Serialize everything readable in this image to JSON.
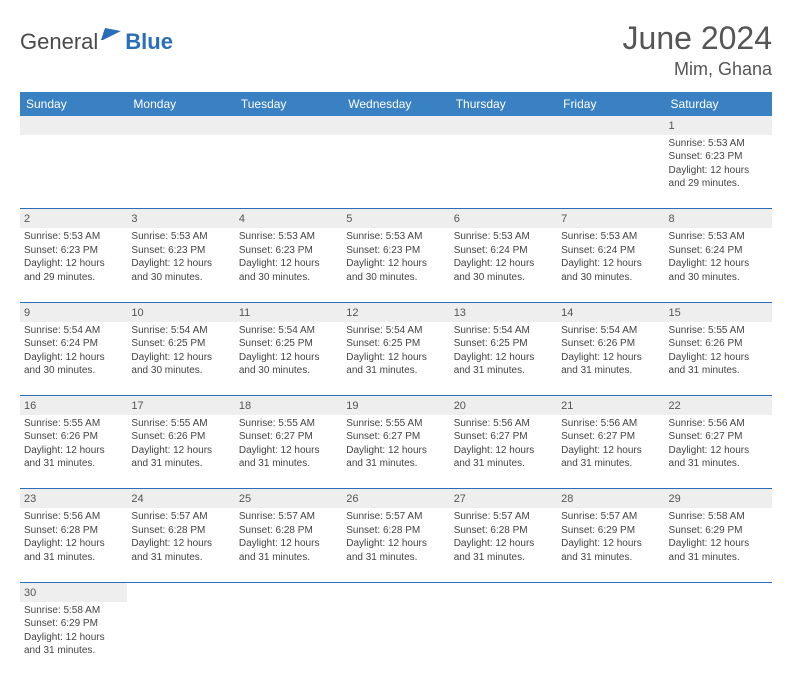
{
  "brand": {
    "part1": "General",
    "part2": "Blue"
  },
  "title": "June 2024",
  "location": "Mim, Ghana",
  "colors": {
    "header_bg": "#3a81c4",
    "header_text": "#ffffff",
    "accent": "#2a6db8",
    "shade": "#eeeeee",
    "text": "#444444"
  },
  "day_headers": [
    "Sunday",
    "Monday",
    "Tuesday",
    "Wednesday",
    "Thursday",
    "Friday",
    "Saturday"
  ],
  "weeks": [
    [
      null,
      null,
      null,
      null,
      null,
      null,
      {
        "n": "1",
        "sr": "5:53 AM",
        "ss": "6:23 PM",
        "dl": "12 hours and 29 minutes."
      }
    ],
    [
      {
        "n": "2",
        "sr": "5:53 AM",
        "ss": "6:23 PM",
        "dl": "12 hours and 29 minutes."
      },
      {
        "n": "3",
        "sr": "5:53 AM",
        "ss": "6:23 PM",
        "dl": "12 hours and 30 minutes."
      },
      {
        "n": "4",
        "sr": "5:53 AM",
        "ss": "6:23 PM",
        "dl": "12 hours and 30 minutes."
      },
      {
        "n": "5",
        "sr": "5:53 AM",
        "ss": "6:23 PM",
        "dl": "12 hours and 30 minutes."
      },
      {
        "n": "6",
        "sr": "5:53 AM",
        "ss": "6:24 PM",
        "dl": "12 hours and 30 minutes."
      },
      {
        "n": "7",
        "sr": "5:53 AM",
        "ss": "6:24 PM",
        "dl": "12 hours and 30 minutes."
      },
      {
        "n": "8",
        "sr": "5:53 AM",
        "ss": "6:24 PM",
        "dl": "12 hours and 30 minutes."
      }
    ],
    [
      {
        "n": "9",
        "sr": "5:54 AM",
        "ss": "6:24 PM",
        "dl": "12 hours and 30 minutes."
      },
      {
        "n": "10",
        "sr": "5:54 AM",
        "ss": "6:25 PM",
        "dl": "12 hours and 30 minutes."
      },
      {
        "n": "11",
        "sr": "5:54 AM",
        "ss": "6:25 PM",
        "dl": "12 hours and 30 minutes."
      },
      {
        "n": "12",
        "sr": "5:54 AM",
        "ss": "6:25 PM",
        "dl": "12 hours and 31 minutes."
      },
      {
        "n": "13",
        "sr": "5:54 AM",
        "ss": "6:25 PM",
        "dl": "12 hours and 31 minutes."
      },
      {
        "n": "14",
        "sr": "5:54 AM",
        "ss": "6:26 PM",
        "dl": "12 hours and 31 minutes."
      },
      {
        "n": "15",
        "sr": "5:55 AM",
        "ss": "6:26 PM",
        "dl": "12 hours and 31 minutes."
      }
    ],
    [
      {
        "n": "16",
        "sr": "5:55 AM",
        "ss": "6:26 PM",
        "dl": "12 hours and 31 minutes."
      },
      {
        "n": "17",
        "sr": "5:55 AM",
        "ss": "6:26 PM",
        "dl": "12 hours and 31 minutes."
      },
      {
        "n": "18",
        "sr": "5:55 AM",
        "ss": "6:27 PM",
        "dl": "12 hours and 31 minutes."
      },
      {
        "n": "19",
        "sr": "5:55 AM",
        "ss": "6:27 PM",
        "dl": "12 hours and 31 minutes."
      },
      {
        "n": "20",
        "sr": "5:56 AM",
        "ss": "6:27 PM",
        "dl": "12 hours and 31 minutes."
      },
      {
        "n": "21",
        "sr": "5:56 AM",
        "ss": "6:27 PM",
        "dl": "12 hours and 31 minutes."
      },
      {
        "n": "22",
        "sr": "5:56 AM",
        "ss": "6:27 PM",
        "dl": "12 hours and 31 minutes."
      }
    ],
    [
      {
        "n": "23",
        "sr": "5:56 AM",
        "ss": "6:28 PM",
        "dl": "12 hours and 31 minutes."
      },
      {
        "n": "24",
        "sr": "5:57 AM",
        "ss": "6:28 PM",
        "dl": "12 hours and 31 minutes."
      },
      {
        "n": "25",
        "sr": "5:57 AM",
        "ss": "6:28 PM",
        "dl": "12 hours and 31 minutes."
      },
      {
        "n": "26",
        "sr": "5:57 AM",
        "ss": "6:28 PM",
        "dl": "12 hours and 31 minutes."
      },
      {
        "n": "27",
        "sr": "5:57 AM",
        "ss": "6:28 PM",
        "dl": "12 hours and 31 minutes."
      },
      {
        "n": "28",
        "sr": "5:57 AM",
        "ss": "6:29 PM",
        "dl": "12 hours and 31 minutes."
      },
      {
        "n": "29",
        "sr": "5:58 AM",
        "ss": "6:29 PM",
        "dl": "12 hours and 31 minutes."
      }
    ],
    [
      {
        "n": "30",
        "sr": "5:58 AM",
        "ss": "6:29 PM",
        "dl": "12 hours and 31 minutes."
      },
      null,
      null,
      null,
      null,
      null,
      null
    ]
  ],
  "labels": {
    "sunrise": "Sunrise:",
    "sunset": "Sunset:",
    "daylight": "Daylight:"
  }
}
